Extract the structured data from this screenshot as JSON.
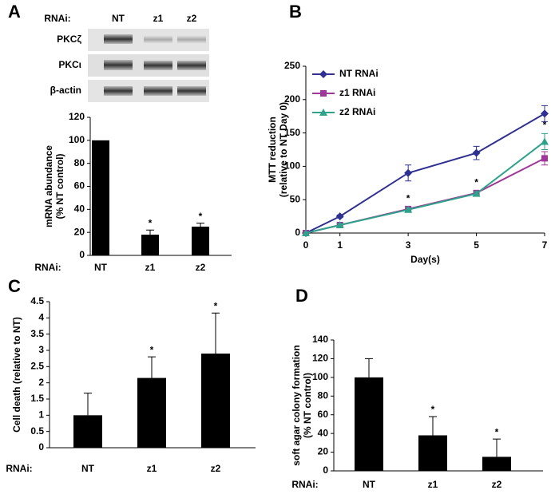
{
  "chart_data": [
    {
      "type": "bar",
      "panel": "A",
      "blot": {
        "lanes_label": "RNAi:",
        "lanes": [
          "NT",
          "z1",
          "z2"
        ],
        "rows": [
          "PKCζ",
          "PKCι",
          "β-actin"
        ]
      },
      "ylabel": [
        "mRNA abundance",
        "(% NT control)"
      ],
      "x_row_label": "RNAi:",
      "categories": [
        "NT",
        "z1",
        "z2"
      ],
      "values": [
        100,
        18,
        25
      ],
      "errors": [
        0,
        4,
        3
      ],
      "marks": [
        null,
        "*",
        "*"
      ],
      "color": "#000000",
      "ylim": [
        0,
        120
      ],
      "yticks": [
        0,
        20,
        40,
        60,
        80,
        100,
        120
      ]
    },
    {
      "type": "line",
      "panel": "B",
      "xlabel": "Day(s)",
      "ylabel": [
        "MTT reduction",
        "(relative to NT Day 0)"
      ],
      "x": [
        0,
        1,
        3,
        5,
        7
      ],
      "xlim": [
        0,
        7
      ],
      "xticks": [
        0,
        1,
        3,
        5,
        7
      ],
      "ylim": [
        0,
        250
      ],
      "yticks": [
        0,
        50,
        100,
        150,
        200,
        250
      ],
      "legend": "top-left",
      "series": [
        {
          "name": "NT RNAi",
          "color": "#2e3192",
          "marker": "diamond",
          "values": [
            0,
            25,
            90,
            120,
            179
          ],
          "errors": [
            0,
            2,
            12,
            10,
            12
          ]
        },
        {
          "name": "z1 RNAi",
          "color": "#a0359a",
          "marker": "square",
          "values": [
            0,
            12,
            36,
            60,
            112
          ],
          "errors": [
            0,
            2,
            3,
            3,
            10
          ]
        },
        {
          "name": "z2 RNAi",
          "color": "#2ea28a",
          "marker": "triangle",
          "values": [
            0,
            12,
            35,
            59,
            137
          ],
          "errors": [
            0,
            2,
            3,
            3,
            12
          ]
        }
      ],
      "annotations": [
        {
          "x": 3,
          "text": "*"
        },
        {
          "x": 5,
          "text": "*"
        },
        {
          "x": 7,
          "text": "*"
        }
      ]
    },
    {
      "type": "bar",
      "panel": "C",
      "ylabel": [
        "Cell death (relative to NT)"
      ],
      "x_row_label": "RNAi:",
      "categories": [
        "NT",
        "z1",
        "z2"
      ],
      "values": [
        1.0,
        2.15,
        2.9
      ],
      "errors": [
        0.68,
        0.65,
        1.25
      ],
      "marks": [
        null,
        "*",
        "*"
      ],
      "color": "#000000",
      "ylim": [
        0,
        4.5
      ],
      "yticks": [
        0,
        0.5,
        1,
        1.5,
        2,
        2.5,
        3,
        3.5,
        4,
        4.5
      ]
    },
    {
      "type": "bar",
      "panel": "D",
      "ylabel": [
        "soft agar colony formation",
        "(% NT control)"
      ],
      "x_row_label": "RNAi:",
      "categories": [
        "NT",
        "z1",
        "z2"
      ],
      "values": [
        100,
        38,
        15
      ],
      "errors": [
        20,
        20,
        19
      ],
      "marks": [
        null,
        "*",
        "*"
      ],
      "color": "#000000",
      "ylim": [
        0,
        140
      ],
      "yticks": [
        0,
        20,
        40,
        60,
        80,
        100,
        120,
        140
      ]
    }
  ]
}
